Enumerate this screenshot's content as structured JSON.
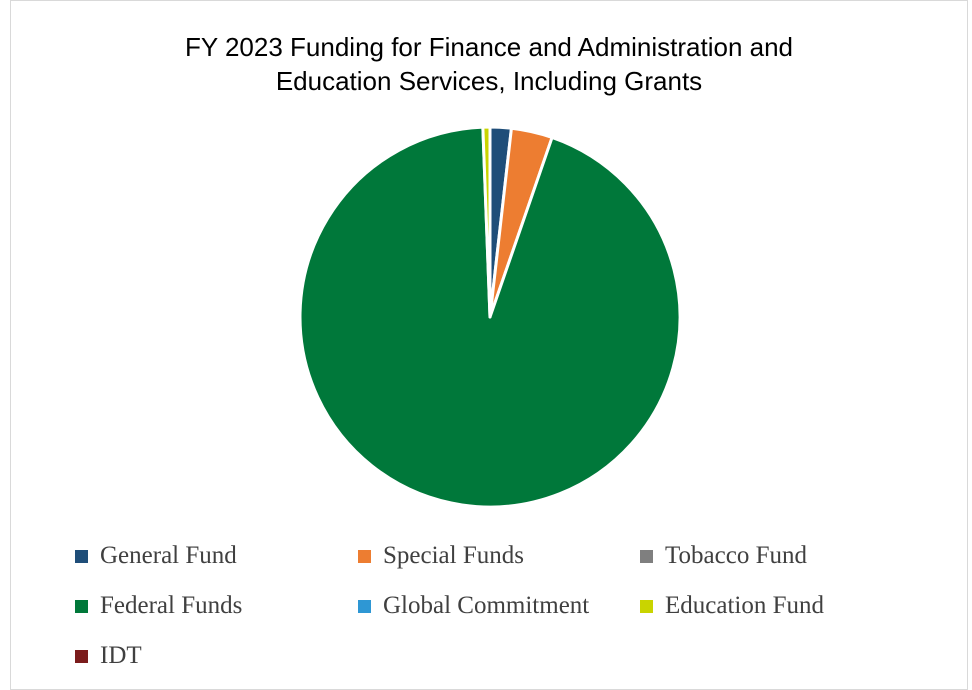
{
  "chart_data": {
    "type": "pie",
    "title_lines": [
      "FY 2023 Funding for Finance and Administration and",
      "Education Services, Including Grants"
    ],
    "series": [
      {
        "name": "General Fund",
        "value": 1.8,
        "color": "#1f4e79"
      },
      {
        "name": "Special Funds",
        "value": 3.5,
        "color": "#ed7d31"
      },
      {
        "name": "Tobacco Fund",
        "value": 0.0,
        "color": "#7f7f7f"
      },
      {
        "name": "Federal Funds",
        "value": 94.1,
        "color": "#00783a"
      },
      {
        "name": "Global Commitment",
        "value": 0.0,
        "color": "#2e97d4"
      },
      {
        "name": "Education Fund",
        "value": 0.6,
        "color": "#c9d400"
      },
      {
        "name": "IDT",
        "value": 0.0,
        "color": "#7b1c1c"
      }
    ],
    "legend_position": "bottom"
  }
}
